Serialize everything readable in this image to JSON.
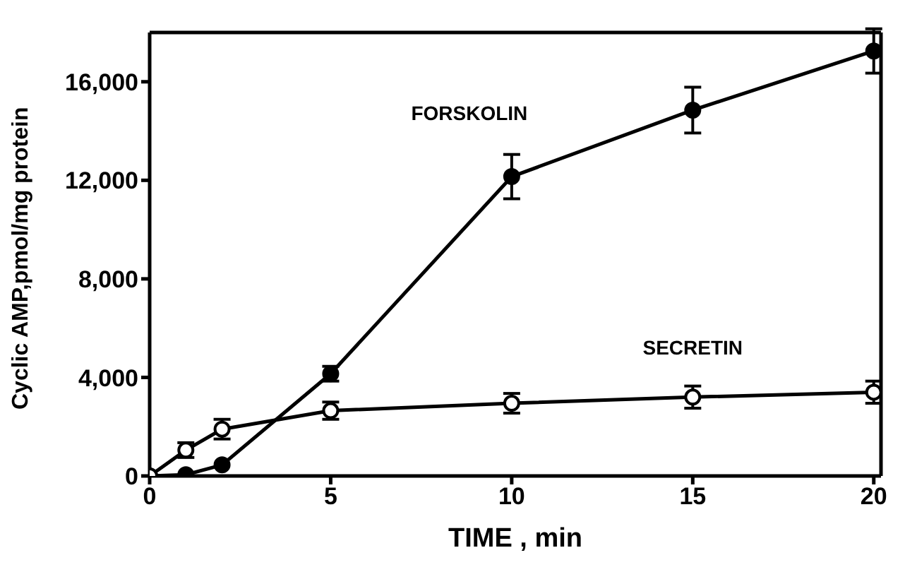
{
  "chart_data": {
    "type": "line",
    "xlabel": "TIME , min",
    "ylabel": "Cyclic AMP,pmol/mg protein",
    "x": [
      0,
      1,
      2,
      5,
      10,
      15,
      20
    ],
    "series": [
      {
        "name": "FORSKOLIN",
        "color": "#000000",
        "values": [
          0,
          50,
          450,
          4150,
          12150,
          14850,
          17250
        ],
        "errors": [
          null,
          null,
          null,
          300,
          900,
          930,
          900
        ]
      },
      {
        "name": "SECRETIN",
        "color": "#000000",
        "values": [
          0,
          1050,
          1900,
          2650,
          2950,
          3200,
          3400
        ],
        "errors": [
          null,
          300,
          400,
          350,
          400,
          450,
          450
        ]
      }
    ],
    "xlim": [
      0,
      20.2
    ],
    "xticks": [
      0,
      5,
      10,
      15,
      20
    ],
    "ylim": [
      0,
      18000
    ],
    "yticks": [
      0,
      {
        "value": 4000,
        "label": "4,000"
      },
      {
        "value": 8000,
        "label": "8,000"
      },
      {
        "value": 12000,
        "label": "12,000"
      },
      {
        "value": 16000,
        "label": "16,000"
      }
    ],
    "marker": "circle",
    "line_style": "solid",
    "grid": false,
    "legend": false
  }
}
